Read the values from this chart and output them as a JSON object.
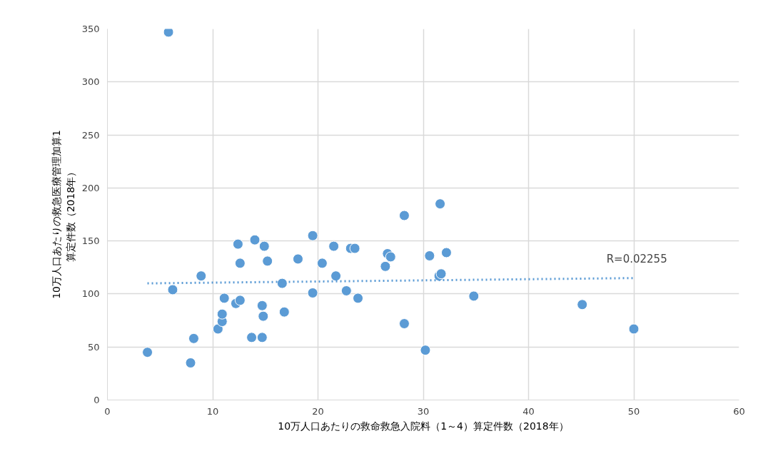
{
  "chart_data": {
    "type": "scatter",
    "xlabel": "10万人口あたりの救命救急入院料（1～4）算定件数（2018年）",
    "ylabel": "10万人口あたりの救急医療管理加算1\n算定件数（2018年）",
    "xlim": [
      0,
      60
    ],
    "xticks": [
      0,
      10,
      20,
      30,
      40,
      50,
      60
    ],
    "ylim": [
      0,
      350
    ],
    "yticks": [
      0,
      50,
      100,
      150,
      200,
      250,
      300,
      350
    ],
    "grid": true,
    "annotations": [
      "R=0.02255"
    ],
    "series": [
      {
        "color": "#5b9bd5",
        "marker": "circle",
        "x": [
          5.8,
          3.8,
          6.2,
          8.2,
          7.9,
          8.9,
          10.5,
          10.9,
          10.9,
          11.1,
          12.2,
          12.6,
          12.4,
          12.6,
          14.0,
          13.7,
          14.7,
          14.7,
          14.8,
          14.9,
          15.2,
          16.6,
          16.8,
          18.1,
          19.5,
          19.5,
          20.4,
          21.5,
          21.7,
          22.7,
          23.1,
          23.5,
          23.8,
          26.4,
          26.6,
          26.9,
          28.2,
          28.2,
          30.2,
          30.6,
          31.6,
          31.5,
          31.7,
          32.2,
          34.8,
          45.1,
          50.0
        ],
        "values": [
          347,
          45,
          104,
          58,
          35,
          117,
          67,
          74,
          81,
          96,
          91,
          94,
          147,
          129,
          151,
          59,
          59,
          89,
          79,
          145,
          131,
          110,
          83,
          133,
          155,
          101,
          129,
          145,
          117,
          103,
          143,
          143,
          96,
          126,
          138,
          135,
          174,
          72,
          47,
          136,
          185,
          117,
          119,
          139,
          98,
          90,
          67
        ]
      },
      {
        "type": "line",
        "color": "#5b9bd5",
        "marker": "none",
        "line_style": "dotted",
        "x": [
          3.8,
          50.0
        ],
        "values": [
          110,
          115
        ]
      }
    ]
  }
}
